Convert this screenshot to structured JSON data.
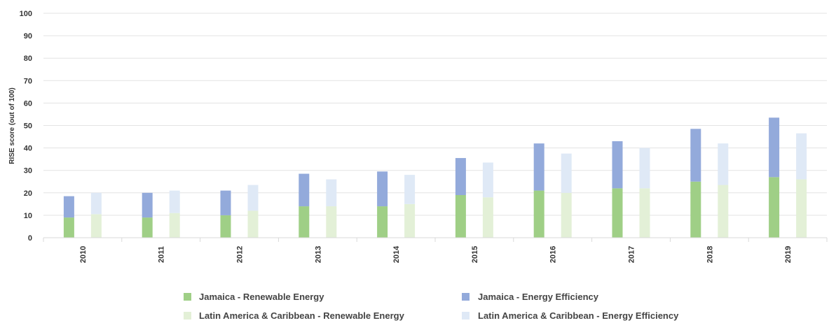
{
  "chart_data": {
    "type": "bar",
    "stacked": true,
    "title": "",
    "xlabel": "",
    "ylabel": "RISE score (out of 100)",
    "ylim": [
      0,
      100
    ],
    "yticks": [
      0,
      10,
      20,
      30,
      40,
      50,
      60,
      70,
      80,
      90,
      100
    ],
    "grid": true,
    "legend_position": "bottom",
    "categories": [
      "2010",
      "2011",
      "2012",
      "2013",
      "2014",
      "2015",
      "2016",
      "2017",
      "2018",
      "2019"
    ],
    "groups": [
      {
        "name": "Jamaica",
        "series": [
          {
            "name": "Jamaica - Renewable Energy",
            "color": "#9fcf86",
            "values": [
              9,
              9,
              10,
              14,
              14,
              19,
              21,
              22,
              25,
              27
            ]
          },
          {
            "name": "Jamaica - Energy Efficiency",
            "color": "#93aadb",
            "values": [
              9.5,
              11,
              11,
              14.5,
              15.5,
              16.5,
              21,
              21,
              23.5,
              26.5
            ]
          }
        ]
      },
      {
        "name": "Latin America & Caribbean",
        "series": [
          {
            "name": "Latin America & Caribbean - Renewable Energy",
            "color": "#e3f0d7",
            "values": [
              10.5,
              11,
              12,
              14,
              15,
              18,
              20,
              22,
              23.5,
              26
            ]
          },
          {
            "name": "Latin America & Caribbean - Energy Efficiency",
            "color": "#dfe9f6",
            "values": [
              9.5,
              10,
              11.5,
              12,
              13,
              15.5,
              17.5,
              18,
              18.5,
              20.5
            ]
          }
        ]
      }
    ]
  }
}
